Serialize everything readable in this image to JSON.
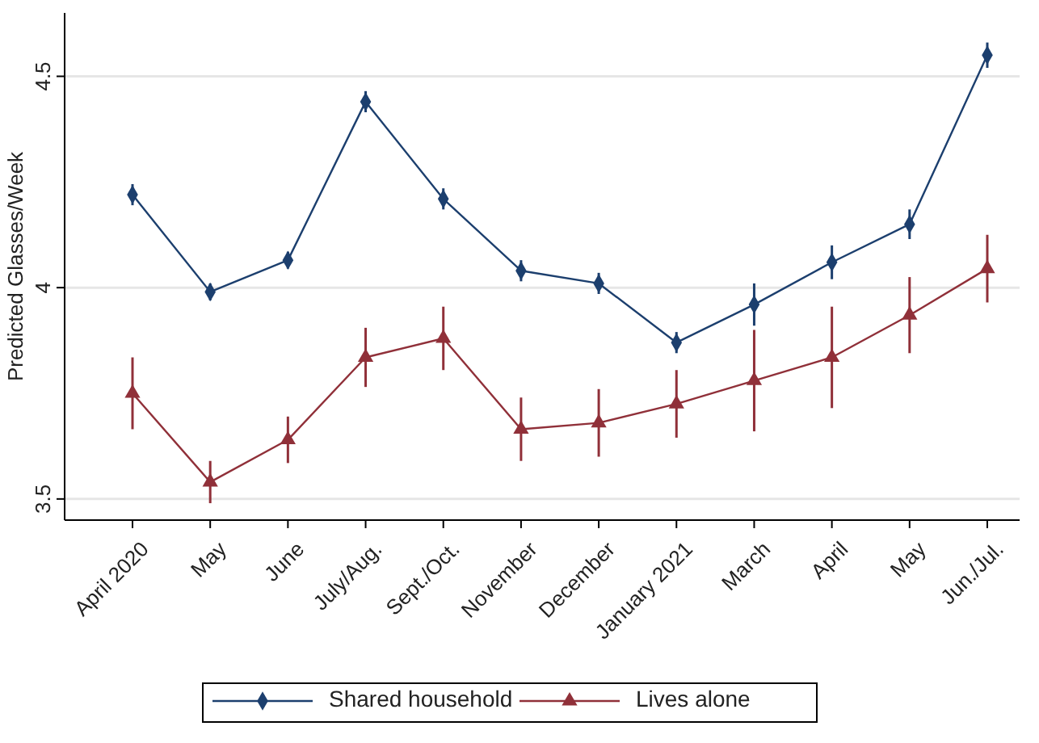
{
  "chart_data": {
    "type": "line",
    "ylabel": "Predicted Glasses/Week",
    "categories": [
      "April 2020",
      "May",
      "June",
      "July/Aug.",
      "Sept./Oct.",
      "November",
      "December",
      "January 2021",
      "March",
      "April",
      "May",
      "Jun./Jul."
    ],
    "series": [
      {
        "name": "Shared household",
        "color": "#1c3f6e",
        "marker": "diamond",
        "values": [
          4.22,
          3.99,
          4.065,
          4.44,
          4.21,
          4.04,
          4.01,
          3.87,
          3.96,
          4.06,
          4.15,
          4.55
        ],
        "errors": [
          0.025,
          0.02,
          0.02,
          0.025,
          0.025,
          0.025,
          0.025,
          0.025,
          0.05,
          0.04,
          0.035,
          0.03
        ]
      },
      {
        "name": "Lives alone",
        "color": "#903039",
        "marker": "triangle",
        "values": [
          3.75,
          3.54,
          3.64,
          3.835,
          3.88,
          3.665,
          3.68,
          3.725,
          3.78,
          3.835,
          3.935,
          4.045
        ],
        "errors": [
          0.085,
          0.05,
          0.055,
          0.07,
          0.075,
          0.075,
          0.08,
          0.08,
          0.12,
          0.12,
          0.09,
          0.08
        ]
      }
    ],
    "ylim": [
      3.45,
      4.65
    ],
    "yticks": [
      3.5,
      4,
      4.5
    ],
    "grid": "y",
    "legend": "bottom"
  }
}
